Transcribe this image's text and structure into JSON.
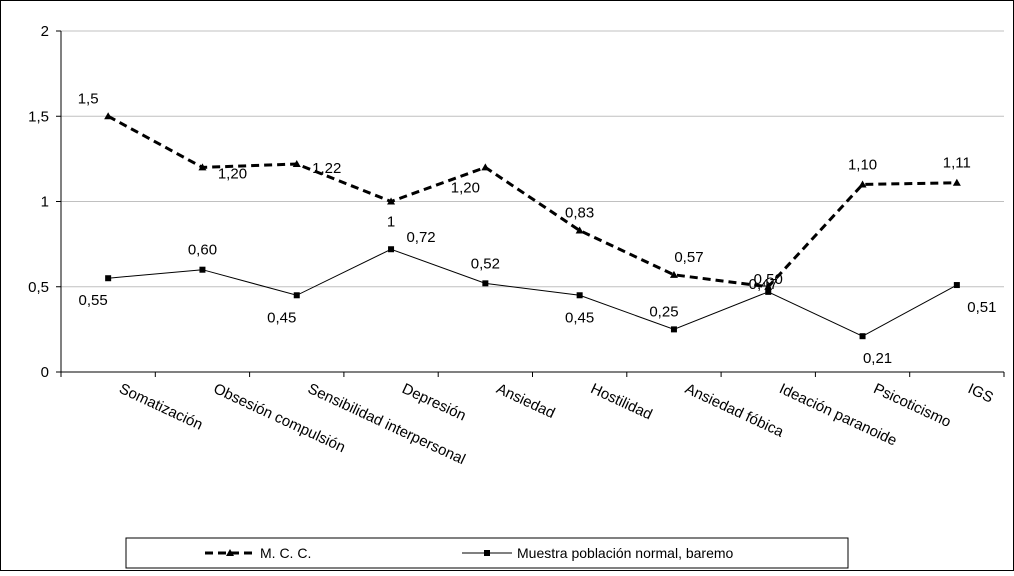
{
  "chart_data": {
    "type": "line",
    "categories": [
      "Somatización",
      "Obsesión compulsión",
      "Sensibilidad interpersonal",
      "Depresión",
      "Ansiedad",
      "Hostilidad",
      "Ansiedad fóbica",
      "Ideación paranoide",
      "Psicoticismo",
      "IGS"
    ],
    "series": [
      {
        "name": "M. C. C.",
        "values": [
          1.5,
          1.2,
          1.22,
          1.0,
          1.2,
          0.83,
          0.57,
          0.5,
          1.1,
          1.11
        ],
        "labels": [
          "1,5",
          "1,20",
          "1,22",
          "1",
          "1,20",
          "0,83",
          "0,57",
          "0,50",
          "1,10",
          "1,11"
        ],
        "style": "dashed",
        "marker": "triangle",
        "color": "#000000"
      },
      {
        "name": "Muestra población normal, baremo",
        "values": [
          0.55,
          0.6,
          0.45,
          0.72,
          0.52,
          0.45,
          0.25,
          0.47,
          0.21,
          0.51
        ],
        "labels": [
          "0,55",
          "0,60",
          "0,45",
          "0,72",
          "0,52",
          "0,45",
          "0,25",
          "0,47",
          "0,21",
          "0,51"
        ],
        "style": "solid",
        "marker": "square",
        "color": "#000000"
      }
    ],
    "ylim": [
      0,
      2
    ],
    "yticks": [
      "0",
      "0,5",
      "1",
      "1,5",
      "2"
    ],
    "grid": "horizontal",
    "legend": "bottom",
    "title": "",
    "xlabel": "",
    "ylabel": ""
  }
}
